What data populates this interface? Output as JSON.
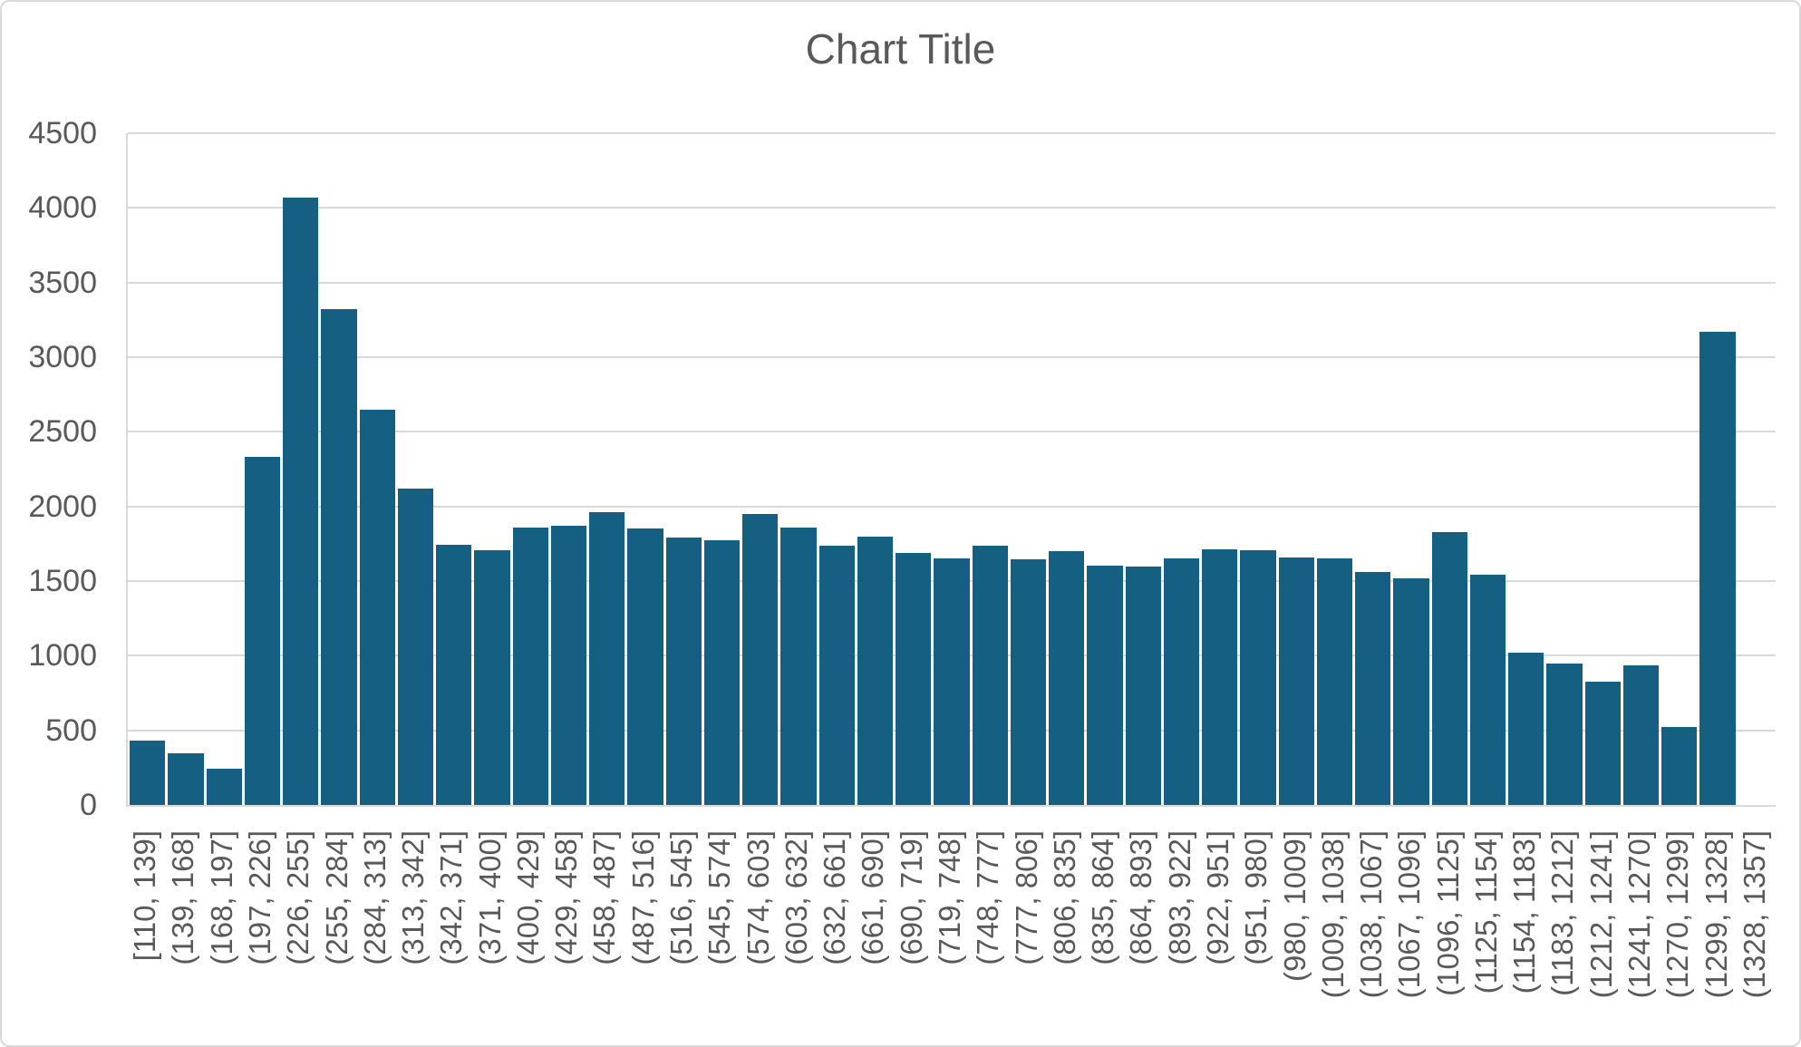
{
  "title": "Chart Title",
  "colors": {
    "bar": "#156082",
    "grid": "#d9d9d9",
    "axis": "#d9d9d9",
    "text": "#595959"
  },
  "y_axis": {
    "tick_labels": [
      "0",
      "500",
      "1000",
      "1500",
      "2000",
      "2500",
      "3000",
      "3500",
      "4000",
      "4500"
    ]
  },
  "chart_data": {
    "type": "bar",
    "title": "Chart Title",
    "xlabel": "",
    "ylabel": "",
    "ylim": [
      0,
      4500
    ],
    "ytick_step": 500,
    "grid": true,
    "legend": false,
    "categories": [
      "[110, 139]",
      "(139, 168]",
      "(168, 197]",
      "(197, 226]",
      "(226, 255]",
      "(255, 284]",
      "(284, 313]",
      "(313, 342]",
      "(342, 371]",
      "(371, 400]",
      "(400, 429]",
      "(429, 458]",
      "(458, 487]",
      "(487, 516]",
      "(516, 545]",
      "(545, 574]",
      "(574, 603]",
      "(603, 632]",
      "(632, 661]",
      "(661, 690]",
      "(690, 719]",
      "(719, 748]",
      "(748, 777]",
      "(777, 806]",
      "(806, 835]",
      "(835, 864]",
      "(864, 893]",
      "(893, 922]",
      "(922, 951]",
      "(951, 980]",
      "(980, 1009]",
      "(1009, 1038]",
      "(1038, 1067]",
      "(1067, 1096]",
      "(1096, 1125]",
      "(1125, 1154]",
      "(1154, 1183]",
      "(1183, 1212]",
      "(1212, 1241]",
      "(1241, 1270]",
      "(1270, 1299]",
      "(1299, 1328]",
      "(1328, 1357]"
    ],
    "values": [
      430,
      345,
      245,
      2330,
      4070,
      3320,
      2650,
      2120,
      1740,
      1705,
      1860,
      1870,
      1960,
      1850,
      1790,
      1775,
      1950,
      1860,
      1735,
      1795,
      1690,
      1650,
      1735,
      1645,
      1700,
      1605,
      1600,
      1650,
      1710,
      1705,
      1660,
      1650,
      1560,
      1520,
      1830,
      1545,
      1020,
      950,
      825,
      935,
      520,
      3170,
      0
    ]
  }
}
